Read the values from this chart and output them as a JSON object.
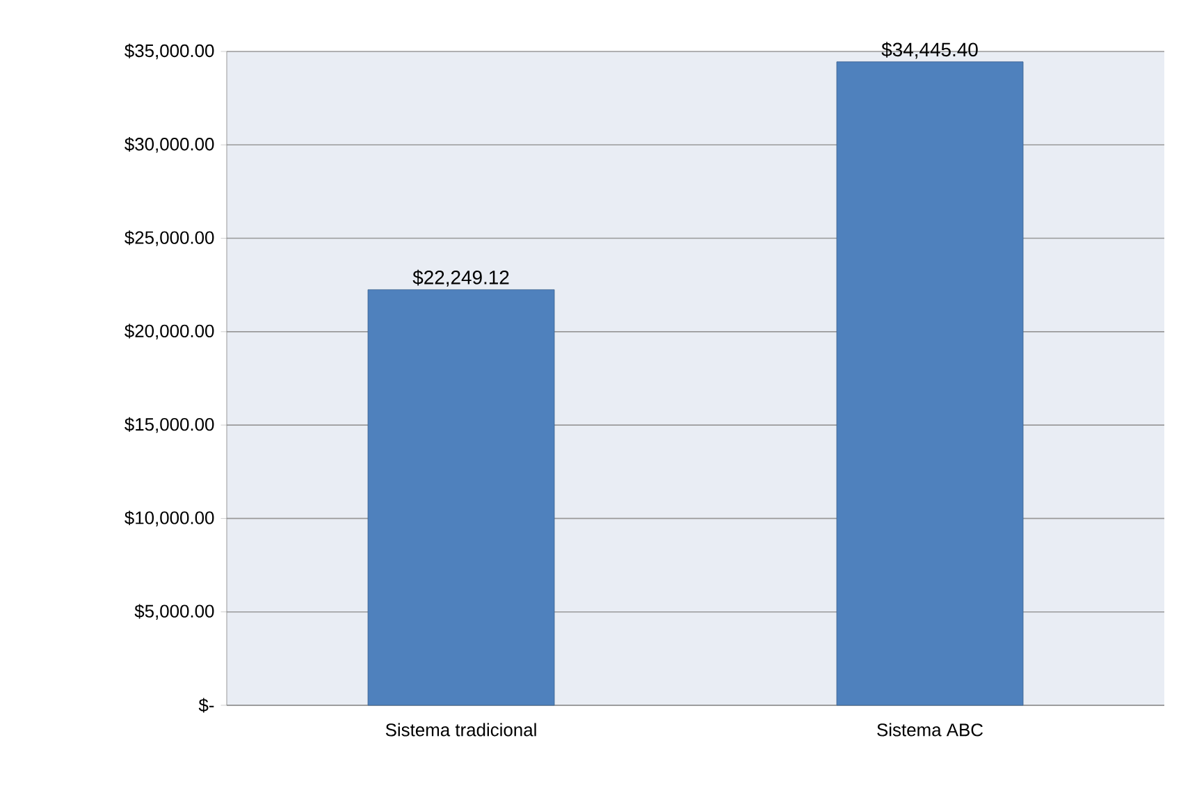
{
  "chart_data": {
    "type": "bar",
    "categories": [
      "Sistema tradicional",
      "Sistema ABC"
    ],
    "values": [
      22249.12,
      34445.4
    ],
    "value_labels": [
      "$22,249.12",
      "$34,445.40"
    ],
    "color": "#4f81bd",
    "ylim": [
      0,
      35000
    ],
    "yticks": [
      {
        "value": 0,
        "label": "$-"
      },
      {
        "value": 5000,
        "label": "$5,000.00"
      },
      {
        "value": 10000,
        "label": "$10,000.00"
      },
      {
        "value": 15000,
        "label": "$15,000.00"
      },
      {
        "value": 20000,
        "label": "$20,000.00"
      },
      {
        "value": 25000,
        "label": "$25,000.00"
      },
      {
        "value": 30000,
        "label": "$30,000.00"
      },
      {
        "value": 35000,
        "label": "$35,000.00"
      }
    ],
    "grid": "y"
  }
}
